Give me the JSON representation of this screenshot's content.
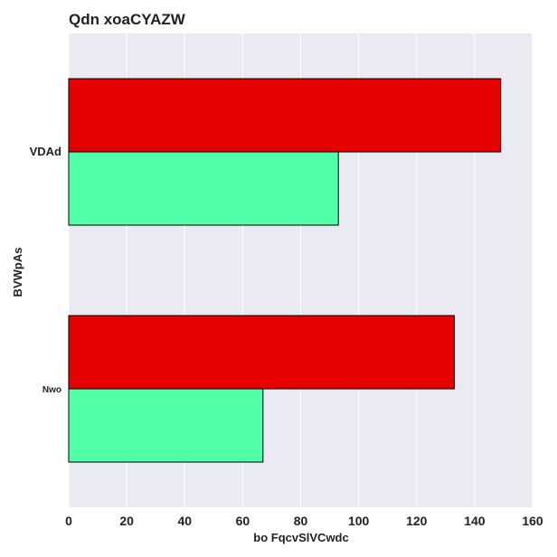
{
  "chart_data": {
    "type": "bar",
    "orientation": "horizontal",
    "title": "Qdn xoaCYAZW",
    "xlabel": "bo FqcvSlVCwdc",
    "ylabel": "BVWpAs",
    "categories": [
      "VDAd",
      "Nwo"
    ],
    "series": [
      {
        "values": [
          149,
          133
        ],
        "color": "#e60000"
      },
      {
        "values": [
          93,
          67
        ],
        "color": "#50ffa8"
      }
    ],
    "xlim": [
      0,
      160
    ],
    "xticks": [
      0,
      20,
      40,
      60,
      80,
      100,
      120,
      140,
      160
    ],
    "grid": true,
    "legend": "none",
    "background_color": "#eaeaf2",
    "grid_color": "#ffffff"
  }
}
